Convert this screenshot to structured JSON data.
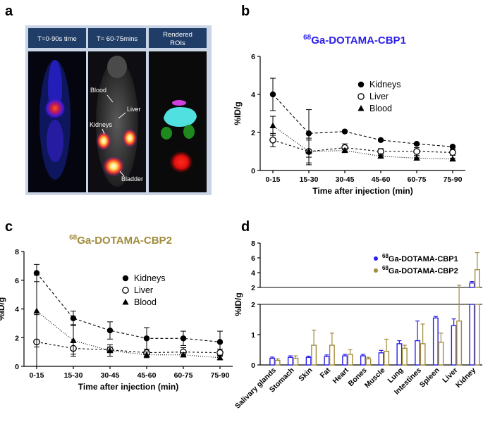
{
  "panels": {
    "a": {
      "label": "a",
      "tabs": [
        "T=0-90s time",
        "T= 60-75mins",
        "Rendered",
        "ROIs"
      ],
      "annotations": [
        "Blood",
        "Liver",
        "Kidneys",
        "Bladder"
      ]
    },
    "b": {
      "label": "b"
    },
    "c": {
      "label": "c"
    },
    "d": {
      "label": "d"
    }
  },
  "chart_data": [
    {
      "id": "b",
      "type": "line",
      "title_sup": "68",
      "title_main": "Ga-DOTAMA-CBP1",
      "title_color": "#2a1ee8",
      "xlabel": "Time after injection (min)",
      "ylabel": "%ID/g",
      "categories": [
        "0-15",
        "15-30",
        "30-45",
        "45-60",
        "60-75",
        "75-90"
      ],
      "ylim": [
        0,
        6
      ],
      "yticks": [
        0,
        2,
        4,
        6
      ],
      "series": [
        {
          "name": "Kidneys",
          "marker": "filled-circle",
          "dash": "4,3",
          "values": [
            4.0,
            1.95,
            2.05,
            1.6,
            1.4,
            1.25
          ],
          "errors": [
            0.85,
            1.25,
            0.05,
            0.05,
            0.05,
            0.05
          ]
        },
        {
          "name": "Liver",
          "marker": "open-circle",
          "dash": "3,3",
          "values": [
            1.6,
            1.0,
            1.2,
            1.0,
            1.0,
            0.95
          ],
          "errors": [
            0.35,
            0.6,
            0.2,
            0.15,
            0.2,
            0.15
          ]
        },
        {
          "name": "Blood",
          "marker": "triangle",
          "dash": "1,2",
          "values": [
            2.35,
            1.0,
            1.05,
            0.75,
            0.65,
            0.6
          ],
          "errors": [
            0.5,
            0.7,
            0.1,
            0.05,
            0.05,
            0.05
          ]
        }
      ]
    },
    {
      "id": "c",
      "type": "line",
      "title_sup": "68",
      "title_main": "Ga-DOTAMA-CBP2",
      "title_color": "#a08c3c",
      "xlabel": "Time after injection (min)",
      "ylabel": "%ID/g",
      "categories": [
        "0-15",
        "15-30",
        "30-45",
        "45-60",
        "60-75",
        "75-90"
      ],
      "ylim": [
        0,
        8
      ],
      "yticks": [
        0,
        2,
        4,
        6,
        8
      ],
      "series": [
        {
          "name": "Kidneys",
          "marker": "filled-circle",
          "dash": "4,3",
          "values": [
            6.5,
            3.35,
            2.5,
            1.95,
            1.95,
            1.7
          ],
          "errors": [
            0.6,
            0.5,
            0.6,
            0.75,
            0.5,
            0.75
          ]
        },
        {
          "name": "Liver",
          "marker": "open-circle",
          "dash": "3,3",
          "values": [
            1.7,
            1.25,
            1.15,
            0.95,
            1.0,
            0.95
          ],
          "errors": [
            1.9,
            0.4,
            0.2,
            0.25,
            0.3,
            0.25
          ]
        },
        {
          "name": "Blood",
          "marker": "triangle",
          "dash": "1,2",
          "values": [
            3.85,
            1.8,
            1.1,
            0.8,
            0.8,
            0.6
          ],
          "errors": [
            2.5,
            1.1,
            0.4,
            0.2,
            0.15,
            0.15
          ]
        }
      ]
    },
    {
      "id": "d",
      "type": "bar",
      "ylabel": "%ID/g",
      "broken_axis": true,
      "yticks_lower": [
        0,
        1,
        2
      ],
      "yticks_upper": [
        2,
        4,
        6,
        8
      ],
      "categories": [
        "Salivary glands",
        "Stomach",
        "Skin",
        "Fat",
        "Heart",
        "Bones",
        "Muscle",
        "Lung",
        "Intestines",
        "Spleen",
        "Liver",
        "Kidney"
      ],
      "series": [
        {
          "name": "Ga-DOTAMA-CBP1",
          "sup": "68",
          "color": "#2a1ee8",
          "values": [
            0.22,
            0.25,
            0.25,
            0.28,
            0.3,
            0.3,
            0.4,
            0.7,
            0.8,
            1.55,
            1.3,
            2.6
          ],
          "errors": [
            0.04,
            0.05,
            0.04,
            0.05,
            0.05,
            0.05,
            0.08,
            0.1,
            0.65,
            0.05,
            0.22,
            0.2
          ]
        },
        {
          "name": "Ga-DOTAMA-CBP2",
          "sup": "68",
          "color": "#a08c3c",
          "values": [
            0.15,
            0.22,
            0.65,
            0.65,
            0.35,
            0.2,
            0.45,
            0.55,
            0.7,
            0.75,
            1.45,
            4.4
          ],
          "errors": [
            0.05,
            0.08,
            0.5,
            0.4,
            0.15,
            0.05,
            0.4,
            0.1,
            0.65,
            0.3,
            0.85,
            2.3
          ]
        }
      ]
    }
  ]
}
